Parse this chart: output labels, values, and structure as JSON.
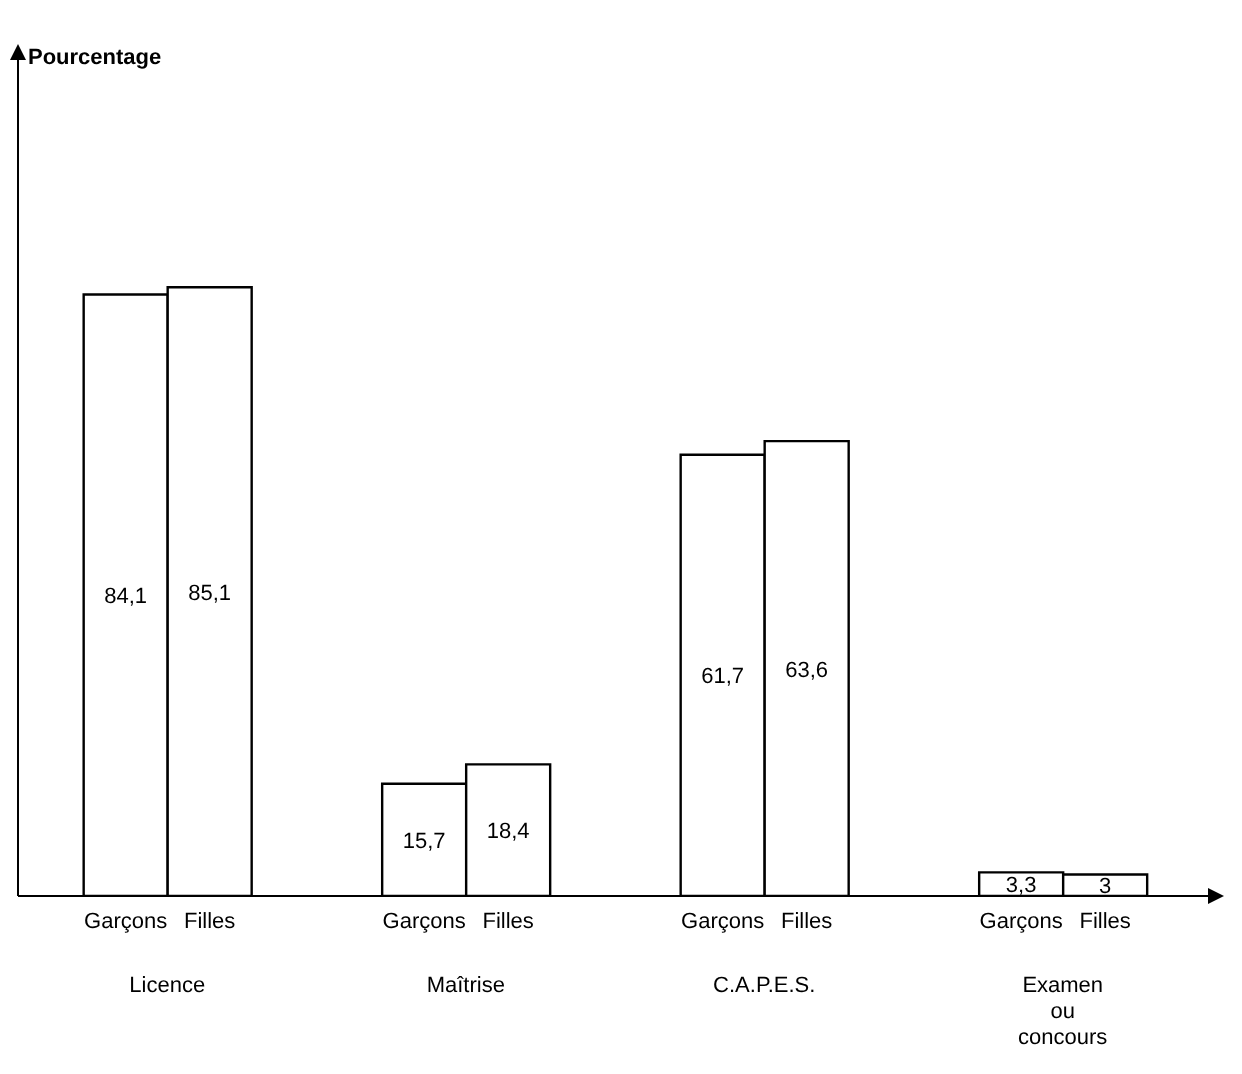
{
  "chart_data": {
    "type": "bar",
    "annotations": [
      "Pourcentage"
    ],
    "categories": [
      "Licence",
      "Maîtrise",
      "C.A.P.E.S.",
      "Examen ou concours"
    ],
    "series": [
      {
        "name": "Garçons",
        "color": "#ffffff",
        "values": [
          84.1,
          15.7,
          61.7,
          3.3
        ],
        "value_labels": [
          "84,1",
          "15,7",
          "61,7",
          "3,3"
        ]
      },
      {
        "name": "Filles",
        "color": "#ffffff",
        "values": [
          85.1,
          18.4,
          63.6,
          3
        ],
        "value_labels": [
          "85,1",
          "18,4",
          "63,6",
          "3"
        ]
      }
    ],
    "grid": false,
    "legend": false
  }
}
